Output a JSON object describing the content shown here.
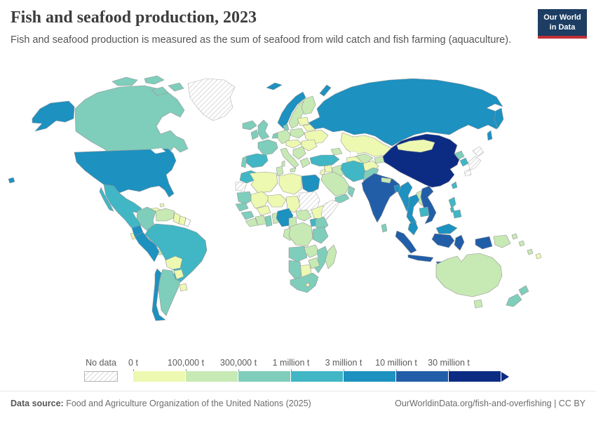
{
  "header": {
    "title": "Fish and seafood production, 2023",
    "subtitle": "Fish and seafood production is measured as the sum of seafood from wild catch and fish farming (aquaculture)."
  },
  "logo": {
    "line1": "Our World",
    "line2": "in Data"
  },
  "footer": {
    "source_label": "Data source:",
    "source_text": " Food and Agriculture Organization of the United Nations (2025)",
    "right_text": "OurWorldinData.org/fish-and-overfishing | CC BY"
  },
  "chart_data": {
    "type": "choropleth",
    "title": "Fish and seafood production, 2023",
    "unit": "tonnes",
    "projection": "world",
    "legend": {
      "no_data_label": "No data",
      "bin_labels": [
        "0 t",
        "100,000 t",
        "300,000 t",
        "1 million t",
        "3 million t",
        "10 million t",
        "30 million t"
      ],
      "bin_colors": [
        "#edf8b1",
        "#c7e9b4",
        "#7fcdbb",
        "#41b6c4",
        "#1d91c0",
        "#225ea8",
        "#0c2c84"
      ],
      "no_data_fill": "hatched",
      "arrow_end": true
    },
    "countries": {
      "united-states": 4,
      "canada": 2,
      "greenland": "no-data",
      "iceland": 2,
      "mexico": 3,
      "guatemala": 0,
      "honduras": 0,
      "nicaragua": 0,
      "costa-rica": 1,
      "panama": 1,
      "cuba": 0,
      "hispaniola": 0,
      "bahamas": 0,
      "colombia": 2,
      "venezuela": 1,
      "guyana": 0,
      "suriname": 0,
      "french-guiana": "none",
      "ecuador": 4,
      "peru": 4,
      "brazil": 3,
      "bolivia": 0,
      "paraguay": 0,
      "uruguay": 0,
      "argentina": 2,
      "chile": 4,
      "norway": 4,
      "sweden": 1,
      "finland": 1,
      "denmark": 2,
      "united-kingdom": 2,
      "ireland": 2,
      "france": 2,
      "spain": 3,
      "portugal": 2,
      "germany": 1,
      "benelux": 2,
      "poland": 1,
      "baltics": 0,
      "belarus": 0,
      "ukraine": 0,
      "central-europe": 0,
      "romania-bulgaria": 0,
      "balkans": 1,
      "greece": 1,
      "italy": 1,
      "turkey": 3,
      "caucasus": 1,
      "russia": 4,
      "morocco": 3,
      "western-sahara": "no-data",
      "algeria": 0,
      "tunisia": 1,
      "libya": 0,
      "egypt": 4,
      "mauritania": 2,
      "mali": 0,
      "niger": 0,
      "chad": 0,
      "sudan": "no-data",
      "ethiopia": 0,
      "somalia": "no-data",
      "senegal": 2,
      "guinea": 2,
      "sierra-leone-liberia": 1,
      "cote-divoire": 1,
      "ghana": 2,
      "togo-benin": 1,
      "burkina-faso": 0,
      "nigeria": 4,
      "cameroon": 1,
      "central-african-republic": 1,
      "gabon-congo": 1,
      "drc": 1,
      "uganda": 3,
      "kenya": 2,
      "tanzania": 2,
      "angola": 2,
      "zambia": 1,
      "mozambique": 2,
      "zimbabwe": 1,
      "botswana": 0,
      "namibia": 2,
      "south-africa": 2,
      "lesotho": 0,
      "madagascar": 1,
      "syria": 0,
      "iraq": 1,
      "jordan": 0,
      "saudi-arabia": 1,
      "yemen": 2,
      "oman": 2,
      "iran": 3,
      "afghanistan": 0,
      "pakistan": 2,
      "kazakhstan": 0,
      "uzbekistan": 1,
      "turkmenistan": 0,
      "kyrgyzstan-tajikistan": 1,
      "india": 5,
      "nepal": 1,
      "bangladesh": 4,
      "sri-lanka": 2,
      "myanmar": 4,
      "thailand": 4,
      "laos": 1,
      "vietnam": 5,
      "cambodia": 3,
      "malaysia": 4,
      "china": 6,
      "mongolia": 0,
      "north-korea": 2,
      "south-korea": 3,
      "japan": "no-data",
      "taiwan": 3,
      "philippines": 3,
      "indonesia": 5,
      "timor-leste": 0,
      "papua-new-guinea": 1,
      "solomon-islands": 1,
      "vanuatu": 1,
      "fiji": 0,
      "australia": 1,
      "new-zealand": 2
    }
  }
}
